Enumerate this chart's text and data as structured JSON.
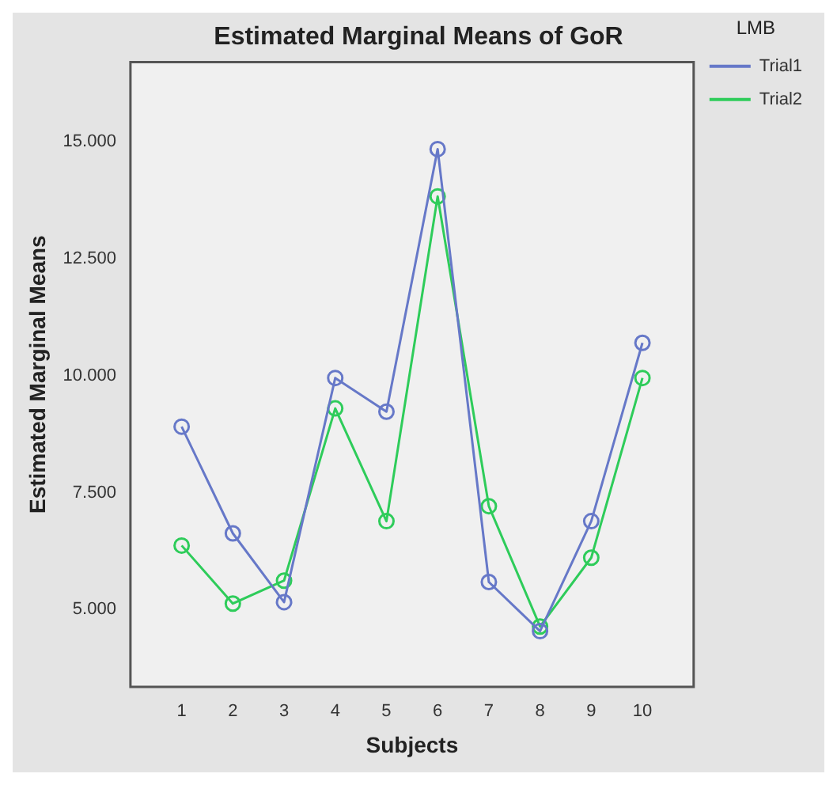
{
  "chart_data": {
    "type": "line",
    "title": "Estimated Marginal Means of GoR",
    "xlabel": "Subjects",
    "ylabel": "Estimated Marginal Means",
    "legend_title": "LMB",
    "categories": [
      "1",
      "2",
      "3",
      "4",
      "5",
      "6",
      "7",
      "8",
      "9",
      "10"
    ],
    "series": [
      {
        "name": "Trial1",
        "color": "#6678c8",
        "values": [
          8.91,
          6.63,
          5.16,
          9.95,
          9.23,
          14.84,
          5.59,
          4.54,
          6.89,
          10.7
        ]
      },
      {
        "name": "Trial2",
        "color": "#2ecc5a",
        "values": [
          6.37,
          5.13,
          5.62,
          9.3,
          6.89,
          13.83,
          7.21,
          4.64,
          6.11,
          9.95
        ]
      }
    ],
    "ylim": [
      3.35,
      16.7
    ],
    "yticks": [
      {
        "value": 5,
        "label": "5.000"
      },
      {
        "value": 7.5,
        "label": "7.500"
      },
      {
        "value": 10,
        "label": "10.000"
      },
      {
        "value": 12.5,
        "label": "12.500"
      },
      {
        "value": 15,
        "label": "15.000"
      }
    ],
    "grid": false,
    "legend": "right",
    "marker": "circle",
    "line_style": "solid"
  }
}
